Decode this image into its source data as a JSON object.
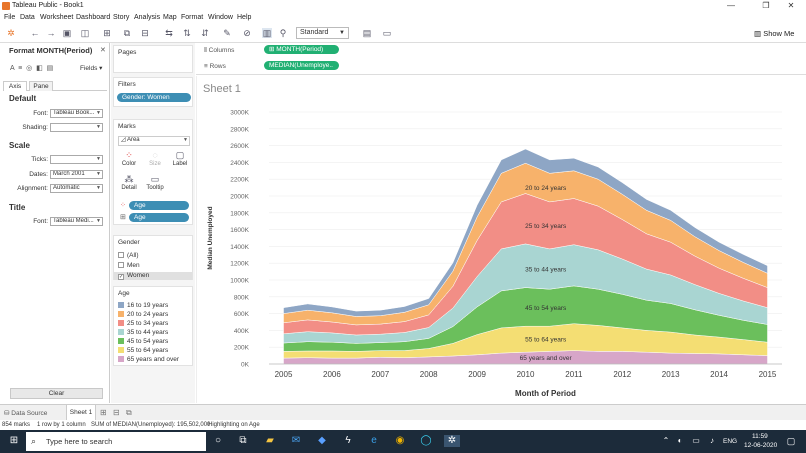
{
  "window": {
    "title": "Tableau Public - Book1"
  },
  "menu": [
    "File",
    "Data",
    "Worksheet",
    "Dashboard",
    "Story",
    "Analysis",
    "Map",
    "Format",
    "Window",
    "Help"
  ],
  "toolbar": {
    "fit_value": "Standard",
    "show_me": "Show Me"
  },
  "format_pane": {
    "title": "Format MONTH(Period)",
    "fields_label": "Fields",
    "tabs": [
      "Axis",
      "Pane"
    ],
    "default_heading": "Default",
    "font_label": "Font:",
    "font_value": "Tableau Book...",
    "shading_label": "Shading:",
    "scale_heading": "Scale",
    "ticks_label": "Ticks:",
    "dates_label": "Dates:",
    "dates_value": "March 2001",
    "alignment_label": "Alignment:",
    "alignment_value": "Automatic",
    "title_heading": "Title",
    "title_font_label": "Font:",
    "title_font_value": "Tableau Medi...",
    "clear_label": "Clear"
  },
  "cards": {
    "pages": "Pages",
    "filters": "Filters",
    "filter_pill": "Gender: Women",
    "marks": "Marks",
    "mark_type": "Area",
    "mark_buttons": [
      "Color",
      "Size",
      "Label",
      "Detail",
      "Tooltip"
    ],
    "mark_pills": [
      "Age",
      "Age"
    ],
    "gender_card": "Gender",
    "gender_items": [
      "(All)",
      "Men",
      "Women"
    ],
    "age_card": "Age"
  },
  "shelves": {
    "columns_label": "Columns",
    "columns_pill": "MONTH(Period)",
    "rows_label": "Rows",
    "rows_pill": "MEDIAN(Unemploye.."
  },
  "sheet": {
    "title": "Sheet 1"
  },
  "tabs": {
    "data_source": "Data Source",
    "sheet1": "Sheet 1"
  },
  "status": {
    "marks": "854 marks",
    "rows_cols": "1 row by 1 column",
    "sum": "SUM of MEDIAN(Unemployed): 195,502,000",
    "highlight": "Highlighting on Age"
  },
  "taskbar": {
    "search": "Type here to search",
    "lang": "ENG",
    "time": "11:59",
    "date": "12-06-2020"
  },
  "colors": {
    "accent_green": "#21b073",
    "pill_blue": "#3d8eb4",
    "taskbar": "#1c2b3a"
  },
  "chart_data": {
    "type": "area",
    "stacked": true,
    "title": "",
    "xlabel": "Month of Period",
    "ylabel": "Median Unemployed",
    "x_ticks": [
      "2005",
      "2006",
      "2007",
      "2008",
      "2009",
      "2010",
      "2011",
      "2012",
      "2013",
      "2014",
      "2015"
    ],
    "y_ticks": [
      "0K",
      "200K",
      "400K",
      "600K",
      "800K",
      "1000K",
      "1200K",
      "1400K",
      "1600K",
      "1800K",
      "2000K",
      "2200K",
      "2400K",
      "2600K",
      "2800K",
      "3000K"
    ],
    "ylim": [
      0,
      3000000
    ],
    "x": [
      2005.0,
      2005.5,
      2006.0,
      2006.5,
      2007.0,
      2007.5,
      2008.0,
      2008.5,
      2009.0,
      2009.5,
      2010.0,
      2010.5,
      2011.0,
      2011.5,
      2012.0,
      2012.5,
      2013.0,
      2013.5,
      2014.0,
      2014.5,
      2015.0
    ],
    "series": [
      {
        "name": "65 years and over",
        "color": "#d7a6c8",
        "values": [
          70000,
          75000,
          70000,
          70000,
          80000,
          75000,
          85000,
          95000,
          110000,
          130000,
          140000,
          150000,
          160000,
          150000,
          150000,
          140000,
          130000,
          125000,
          120000,
          110000,
          100000
        ]
      },
      {
        "name": "55 to 64 years",
        "color": "#f4de73",
        "values": [
          80000,
          80000,
          85000,
          80000,
          80000,
          85000,
          100000,
          150000,
          240000,
          300000,
          310000,
          300000,
          320000,
          310000,
          280000,
          260000,
          250000,
          220000,
          200000,
          180000,
          160000
        ]
      },
      {
        "name": "45 to 54 years",
        "color": "#6bbf5c",
        "values": [
          100000,
          110000,
          105000,
          95000,
          95000,
          105000,
          120000,
          200000,
          330000,
          440000,
          460000,
          440000,
          450000,
          430000,
          400000,
          360000,
          340000,
          300000,
          260000,
          230000,
          210000
        ]
      },
      {
        "name": "35 to 44 years",
        "color": "#a9d5d2",
        "values": [
          110000,
          120000,
          110000,
          100000,
          100000,
          110000,
          130000,
          220000,
          360000,
          500000,
          520000,
          480000,
          490000,
          470000,
          420000,
          370000,
          340000,
          300000,
          260000,
          230000,
          200000
        ]
      },
      {
        "name": "25 to 34 years",
        "color": "#f28e86",
        "values": [
          130000,
          140000,
          130000,
          120000,
          120000,
          130000,
          150000,
          260000,
          430000,
          560000,
          600000,
          560000,
          550000,
          520000,
          470000,
          420000,
          390000,
          340000,
          300000,
          270000,
          240000
        ]
      },
      {
        "name": "20 to 24 years",
        "color": "#f7b26b",
        "values": [
          110000,
          115000,
          110000,
          100000,
          100000,
          110000,
          120000,
          180000,
          280000,
          340000,
          360000,
          340000,
          330000,
          320000,
          300000,
          280000,
          260000,
          230000,
          210000,
          190000,
          170000
        ]
      },
      {
        "name": "16 to 19 years",
        "color": "#8ea6c5",
        "values": [
          70000,
          75000,
          70000,
          65000,
          65000,
          70000,
          75000,
          100000,
          140000,
          160000,
          170000,
          160000,
          150000,
          145000,
          140000,
          130000,
          120000,
          110000,
          100000,
          95000,
          90000
        ]
      }
    ],
    "legend": [
      "16 to 19 years",
      "20 to 24 years",
      "25 to 34 years",
      "35 to 44 years",
      "45 to 54 years",
      "55 to 64 years",
      "65 years and over"
    ]
  }
}
